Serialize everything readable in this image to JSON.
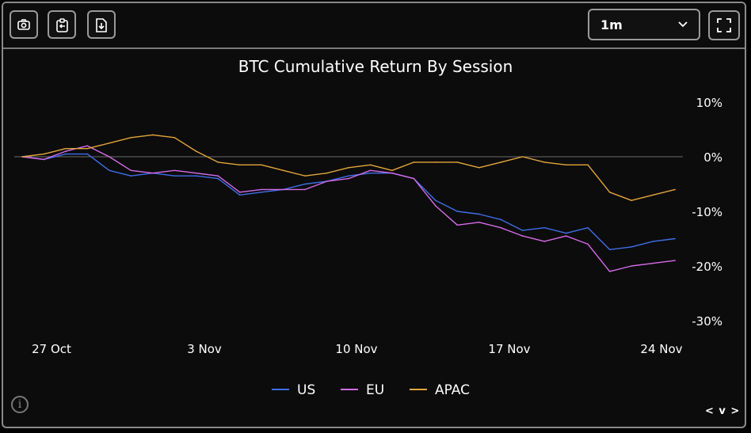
{
  "toolbar": {
    "camera_icon": "camera-icon",
    "clipboard_icon": "clipboard-icon",
    "download_icon": "file-download-icon",
    "range_selected": "1m",
    "fullscreen_icon": "fullscreen-icon"
  },
  "footer": {
    "info_icon": "info-icon",
    "info_glyph": "i",
    "nav_label": "< v >"
  },
  "colors": {
    "US": "#3f6ee8",
    "EU": "#d46be8",
    "APAC": "#e3a53a",
    "zero_line": "#6b6b6b",
    "background": "#0c0c0c"
  },
  "chart_data": {
    "type": "line",
    "title": "BTC Cumulative Return By Session",
    "xlabel": "",
    "ylabel": "",
    "x_ticks": [
      "27 Oct",
      "3 Nov",
      "10 Nov",
      "17 Nov",
      "24 Nov"
    ],
    "y_ticks": [
      "10%",
      "0%",
      "-10%",
      "-20%",
      "-30%"
    ],
    "y_tick_values": [
      10,
      0,
      -10,
      -20,
      -30
    ],
    "ylim": [
      -30,
      10
    ],
    "xlim": [
      "2025-10-26",
      "2025-11-25"
    ],
    "zero_line": true,
    "grid": false,
    "legend_position": "bottom-center",
    "series": [
      {
        "name": "US",
        "x": [
          "2025-10-26",
          "2025-10-27",
          "2025-10-28",
          "2025-10-29",
          "2025-10-30",
          "2025-10-31",
          "2025-11-01",
          "2025-11-02",
          "2025-11-03",
          "2025-11-04",
          "2025-11-05",
          "2025-11-06",
          "2025-11-07",
          "2025-11-08",
          "2025-11-09",
          "2025-11-10",
          "2025-11-11",
          "2025-11-12",
          "2025-11-13",
          "2025-11-14",
          "2025-11-15",
          "2025-11-16",
          "2025-11-17",
          "2025-11-18",
          "2025-11-19",
          "2025-11-20",
          "2025-11-21",
          "2025-11-22",
          "2025-11-23",
          "2025-11-24",
          "2025-11-25"
        ],
        "values": [
          0,
          -0.5,
          0.5,
          0.5,
          -2.5,
          -3.5,
          -3,
          -3.5,
          -3.5,
          -4,
          -7,
          -6.5,
          -6,
          -5,
          -4.5,
          -3.5,
          -3,
          -3,
          -4,
          -8,
          -10,
          -10.5,
          -11.5,
          -13.5,
          -13,
          -14,
          -13,
          -17,
          -16.5,
          -15.5,
          -15
        ]
      },
      {
        "name": "EU",
        "x": [
          "2025-10-26",
          "2025-10-27",
          "2025-10-28",
          "2025-10-29",
          "2025-10-30",
          "2025-10-31",
          "2025-11-01",
          "2025-11-02",
          "2025-11-03",
          "2025-11-04",
          "2025-11-05",
          "2025-11-06",
          "2025-11-07",
          "2025-11-08",
          "2025-11-09",
          "2025-11-10",
          "2025-11-11",
          "2025-11-12",
          "2025-11-13",
          "2025-11-14",
          "2025-11-15",
          "2025-11-16",
          "2025-11-17",
          "2025-11-18",
          "2025-11-19",
          "2025-11-20",
          "2025-11-21",
          "2025-11-22",
          "2025-11-23",
          "2025-11-24",
          "2025-11-25"
        ],
        "values": [
          0,
          -0.5,
          1,
          2,
          0,
          -2.5,
          -3,
          -2.5,
          -3,
          -3.5,
          -6.5,
          -6,
          -6,
          -6,
          -4.5,
          -4,
          -2.5,
          -3,
          -4,
          -9,
          -12.5,
          -12,
          -13,
          -14.5,
          -15.5,
          -14.5,
          -16,
          -21,
          -20,
          -19.5,
          -19
        ]
      },
      {
        "name": "APAC",
        "x": [
          "2025-10-26",
          "2025-10-27",
          "2025-10-28",
          "2025-10-29",
          "2025-10-30",
          "2025-10-31",
          "2025-11-01",
          "2025-11-02",
          "2025-11-03",
          "2025-11-04",
          "2025-11-05",
          "2025-11-06",
          "2025-11-07",
          "2025-11-08",
          "2025-11-09",
          "2025-11-10",
          "2025-11-11",
          "2025-11-12",
          "2025-11-13",
          "2025-11-14",
          "2025-11-15",
          "2025-11-16",
          "2025-11-17",
          "2025-11-18",
          "2025-11-19",
          "2025-11-20",
          "2025-11-21",
          "2025-11-22",
          "2025-11-23",
          "2025-11-24",
          "2025-11-25"
        ],
        "values": [
          0,
          0.5,
          1.5,
          1.5,
          2.5,
          3.5,
          4,
          3.5,
          1,
          -1,
          -1.5,
          -1.5,
          -2.5,
          -3.5,
          -3,
          -2,
          -1.5,
          -2.5,
          -1,
          -1,
          -1,
          -2,
          -1,
          0,
          -1,
          -1.5,
          -1.5,
          -6.5,
          -8,
          -7,
          -6
        ]
      }
    ]
  }
}
